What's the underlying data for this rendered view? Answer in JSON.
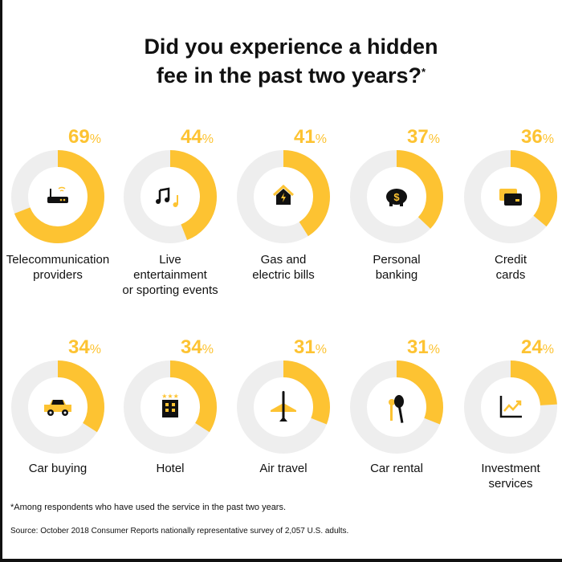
{
  "title_line1": "Did you experience a hidden",
  "title_line2": "fee in the past two years?",
  "title_mark": "*",
  "percent_sign": "%",
  "colors": {
    "accent": "#FDC332",
    "track": "#EEEEEE",
    "icon": "#111111"
  },
  "chart_data": {
    "type": "pie",
    "title": "Did you experience a hidden fee in the past two years?*",
    "categories": [
      "Telecommunication providers",
      "Live entertainment or sporting events",
      "Gas and electric bills",
      "Personal banking",
      "Credit cards",
      "Car buying",
      "Hotel",
      "Air travel",
      "Car rental",
      "Investment services"
    ],
    "values": [
      69,
      44,
      41,
      37,
      36,
      34,
      34,
      31,
      31,
      24
    ],
    "unit": "%",
    "items": [
      {
        "value": 69,
        "value_label": "69",
        "label_lines": [
          "Telecommunication",
          "providers"
        ],
        "icon": "router-icon"
      },
      {
        "value": 44,
        "value_label": "44",
        "label_lines": [
          "Live",
          "entertainment",
          "or sporting events"
        ],
        "icon": "music-notes-icon"
      },
      {
        "value": 41,
        "value_label": "41",
        "label_lines": [
          "Gas and",
          "electric bills"
        ],
        "icon": "house-bolt-icon"
      },
      {
        "value": 37,
        "value_label": "37",
        "label_lines": [
          "Personal",
          "banking"
        ],
        "icon": "piggy-bank-icon"
      },
      {
        "value": 36,
        "value_label": "36",
        "label_lines": [
          "Credit",
          "cards"
        ],
        "icon": "credit-card-icon"
      },
      {
        "value": 34,
        "value_label": "34",
        "label_lines": [
          "Car buying"
        ],
        "icon": "car-icon"
      },
      {
        "value": 34,
        "value_label": "34",
        "label_lines": [
          "Hotel"
        ],
        "icon": "hotel-icon"
      },
      {
        "value": 31,
        "value_label": "31",
        "label_lines": [
          "Air travel"
        ],
        "icon": "airplane-icon"
      },
      {
        "value": 31,
        "value_label": "31",
        "label_lines": [
          "Car rental"
        ],
        "icon": "car-keys-icon"
      },
      {
        "value": 24,
        "value_label": "24",
        "label_lines": [
          "Investment",
          "services"
        ],
        "icon": "chart-up-icon"
      }
    ]
  },
  "footnote": "*Among respondents who have used the service in the past two years.",
  "source": "Source: October 2018 Consumer Reports nationally representative survey of 2,057 U.S. adults."
}
